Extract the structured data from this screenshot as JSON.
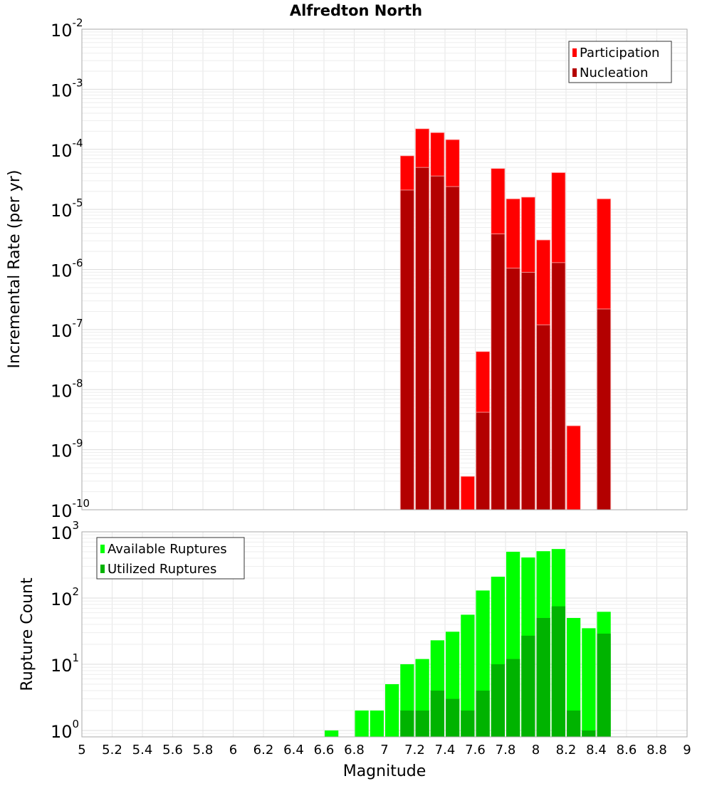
{
  "chart_data": [
    {
      "type": "bar",
      "title": "Alfredton North",
      "xlabel": "",
      "ylabel": "Incremental Rate (per yr)",
      "yscale": "log",
      "ylim": [
        1e-10,
        0.01
      ],
      "xlim": [
        5,
        9
      ],
      "grid": true,
      "legend_position": "top-right",
      "y_tick_exponents": [
        "-2",
        "-3",
        "-4",
        "-5",
        "-6",
        "-7",
        "-8",
        "-9",
        "-10"
      ],
      "x": [
        7.15,
        7.25,
        7.35,
        7.45,
        7.55,
        7.65,
        7.75,
        7.85,
        7.95,
        8.05,
        8.15,
        8.25,
        8.45
      ],
      "series": [
        {
          "name": "Participation",
          "color": "#ff0000",
          "values": [
            7.8e-05,
            0.00022,
            0.00019,
            0.000145,
            3.6e-10,
            4.3e-08,
            4.8e-05,
            1.5e-05,
            1.6e-05,
            3.1e-06,
            4.1e-05,
            2.5e-09,
            1.5e-05
          ]
        },
        {
          "name": "Nucleation",
          "color": "#b30000",
          "values": [
            2.1e-05,
            5e-05,
            3.6e-05,
            2.4e-05,
            null,
            4.2e-09,
            3.9e-06,
            1.05e-06,
            9e-07,
            1.2e-07,
            1.3e-06,
            null,
            2.2e-07
          ]
        }
      ]
    },
    {
      "type": "bar",
      "title": "",
      "xlabel": "Magnitude",
      "ylabel": "Rupture Count",
      "yscale": "log",
      "ylim": [
        0.8,
        1000
      ],
      "xlim": [
        5,
        9
      ],
      "grid": true,
      "legend_position": "top-left",
      "y_tick_exponents": [
        "3",
        "2",
        "1",
        "0"
      ],
      "x_ticks": [
        "5",
        "5.2",
        "5.4",
        "5.6",
        "5.8",
        "6",
        "6.2",
        "6.4",
        "6.6",
        "6.8",
        "7",
        "7.2",
        "7.4",
        "7.6",
        "7.8",
        "8",
        "8.2",
        "8.4",
        "8.6",
        "8.8",
        "9"
      ],
      "x": [
        6.65,
        6.85,
        6.95,
        7.05,
        7.15,
        7.25,
        7.35,
        7.45,
        7.55,
        7.65,
        7.75,
        7.85,
        7.95,
        8.05,
        8.15,
        8.25,
        8.35,
        8.45
      ],
      "series": [
        {
          "name": "Available Ruptures",
          "color": "#00ff00",
          "values": [
            1,
            2,
            2,
            5,
            10,
            12,
            23,
            31,
            56,
            130,
            210,
            500,
            410,
            510,
            550,
            50,
            35,
            62
          ]
        },
        {
          "name": "Utilized Ruptures",
          "color": "#00b300",
          "values": [
            null,
            null,
            null,
            null,
            2,
            2,
            4,
            3,
            2,
            4,
            10,
            12,
            27,
            50,
            75,
            2,
            1,
            29
          ]
        }
      ]
    }
  ]
}
